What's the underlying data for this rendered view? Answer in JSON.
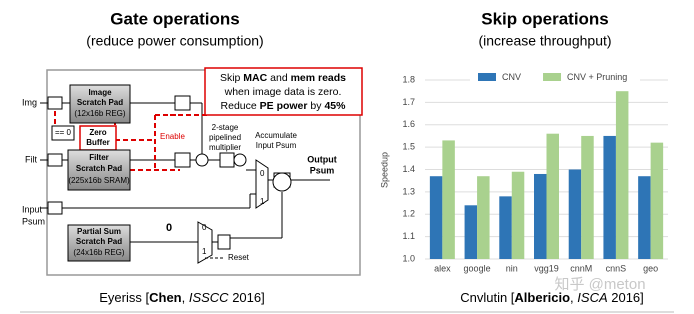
{
  "chart_data": {
    "type": "bar",
    "title": "Skip operations",
    "subtitle": "(increase throughput)",
    "y_label": "Speedup",
    "categories": [
      "alex",
      "google",
      "nin",
      "vgg19",
      "cnnM",
      "cnnS",
      "geo"
    ],
    "series": [
      {
        "name": "CNV",
        "color": "#2e75b6",
        "values": [
          1.37,
          1.24,
          1.28,
          1.38,
          1.4,
          1.55,
          1.37
        ]
      },
      {
        "name": "CNV + Pruning",
        "color": "#a9d18e",
        "values": [
          1.53,
          1.37,
          1.39,
          1.56,
          1.55,
          1.75,
          1.52
        ]
      }
    ],
    "ylim": [
      1.0,
      1.8
    ],
    "yticks": [
      {
        "value": 1.0,
        "label": "1.0"
      },
      1.1,
      1.2,
      1.3,
      1.4,
      1.5,
      1.6,
      1.7,
      1.8
    ],
    "grid": true,
    "legend": "top",
    "caption": [
      "Cnvlutin [",
      "Albericio",
      ", ",
      "ISCA",
      " 2016]"
    ],
    "watermark": "知乎 @meton"
  },
  "left": {
    "title": "Gate operations",
    "subtitle": "(reduce power consumption)",
    "caption": [
      "Eyeriss [",
      "Chen",
      ", ",
      "ISSCC",
      " 2016]"
    ],
    "callout": [
      "Skip ",
      "MAC",
      " and ",
      "mem reads",
      "when image data is zero.",
      "Reduce ",
      "PE power",
      " by ",
      "45%"
    ],
    "inputs": [
      "Img",
      "Filt",
      "Input",
      "Psum"
    ],
    "image_pad": [
      "Image",
      "Scratch Pad",
      "(12x16b REG)"
    ],
    "eq_zero": "== 0",
    "zero_buffer": [
      "Zero",
      "Buffer"
    ],
    "enable": "Enable",
    "filter_pad": [
      "Filter",
      "Scratch Pad",
      "(225x16b SRAM)"
    ],
    "multiplier": [
      "2-stage",
      "pipelined",
      "multiplier"
    ],
    "accumulate": [
      "Accumulate",
      "Input Psum"
    ],
    "output": [
      "Output",
      "Psum"
    ],
    "psum_pad": [
      "Partial Sum",
      "Scratch Pad",
      "(24x16b REG)"
    ],
    "mux_labels": [
      "0",
      "1",
      "0",
      "1",
      "0"
    ],
    "reset": "Reset"
  }
}
